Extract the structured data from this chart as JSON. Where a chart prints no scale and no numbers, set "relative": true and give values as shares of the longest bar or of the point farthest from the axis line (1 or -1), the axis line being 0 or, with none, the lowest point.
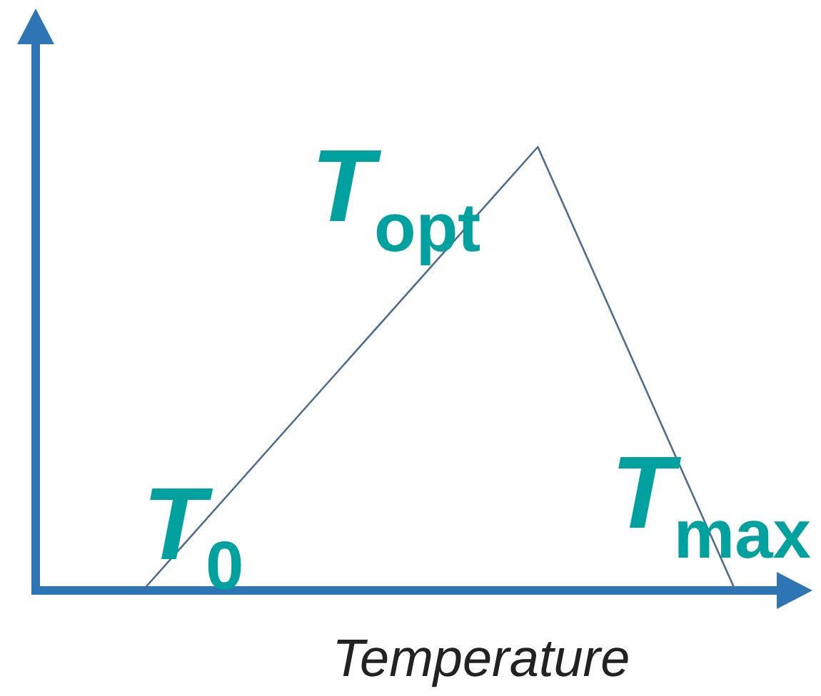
{
  "chart_data": {
    "type": "line",
    "relative": true,
    "xlabel": "Temperature",
    "categories": [
      null,
      null,
      null,
      null
    ],
    "series": [
      {
        "color": "#4f6d8f",
        "values": [
          0,
          0.5,
          1,
          0
        ]
      }
    ],
    "annotations": [
      "T$_{0}$",
      "T$_{opt}$",
      "T$_{max}$"
    ]
  }
}
